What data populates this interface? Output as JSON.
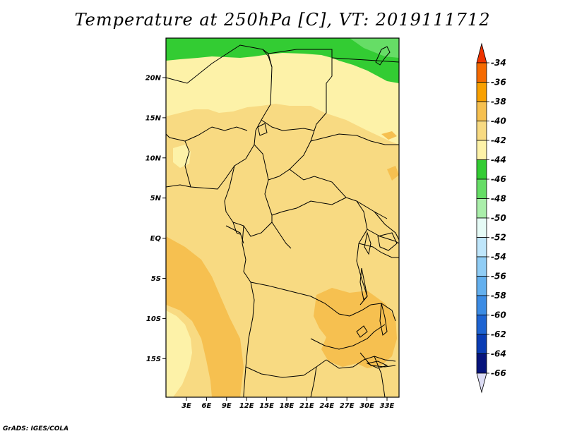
{
  "title": "Temperature at 250hPa [C], VT: 2019111712",
  "credit": "GrADS: IGES/COLA",
  "axes": {
    "lat_ticks": [
      "20N",
      "15N",
      "10N",
      "5N",
      "EQ",
      "5S",
      "10S",
      "15S"
    ],
    "lon_ticks": [
      "3E",
      "6E",
      "9E",
      "12E",
      "15E",
      "18E",
      "21E",
      "24E",
      "27E",
      "30E",
      "33E"
    ]
  },
  "colorbar": {
    "labels": [
      "-34",
      "-36",
      "-38",
      "-40",
      "-42",
      "-44",
      "-46",
      "-48",
      "-50",
      "-52",
      "-54",
      "-56",
      "-58",
      "-60",
      "-62",
      "-64",
      "-66"
    ],
    "colors": [
      "#ee3300",
      "#f56a00",
      "#f8a000",
      "#f6c050",
      "#f8da82",
      "#fdf2a8",
      "#33cc33",
      "#66dd66",
      "#aaeeaa",
      "#e6fbf6",
      "#bfe6fb",
      "#90cdf5",
      "#64b0ee",
      "#3c8ce4",
      "#1e64d2",
      "#0a3cb4",
      "#06147c",
      "#dcdcf4"
    ]
  },
  "map_colors": {
    "c42": "#fdf2a8",
    "c40": "#f8da82",
    "c38": "#f6c050",
    "c44": "#33cc33",
    "c46": "#66dd66",
    "border": "#000000"
  }
}
